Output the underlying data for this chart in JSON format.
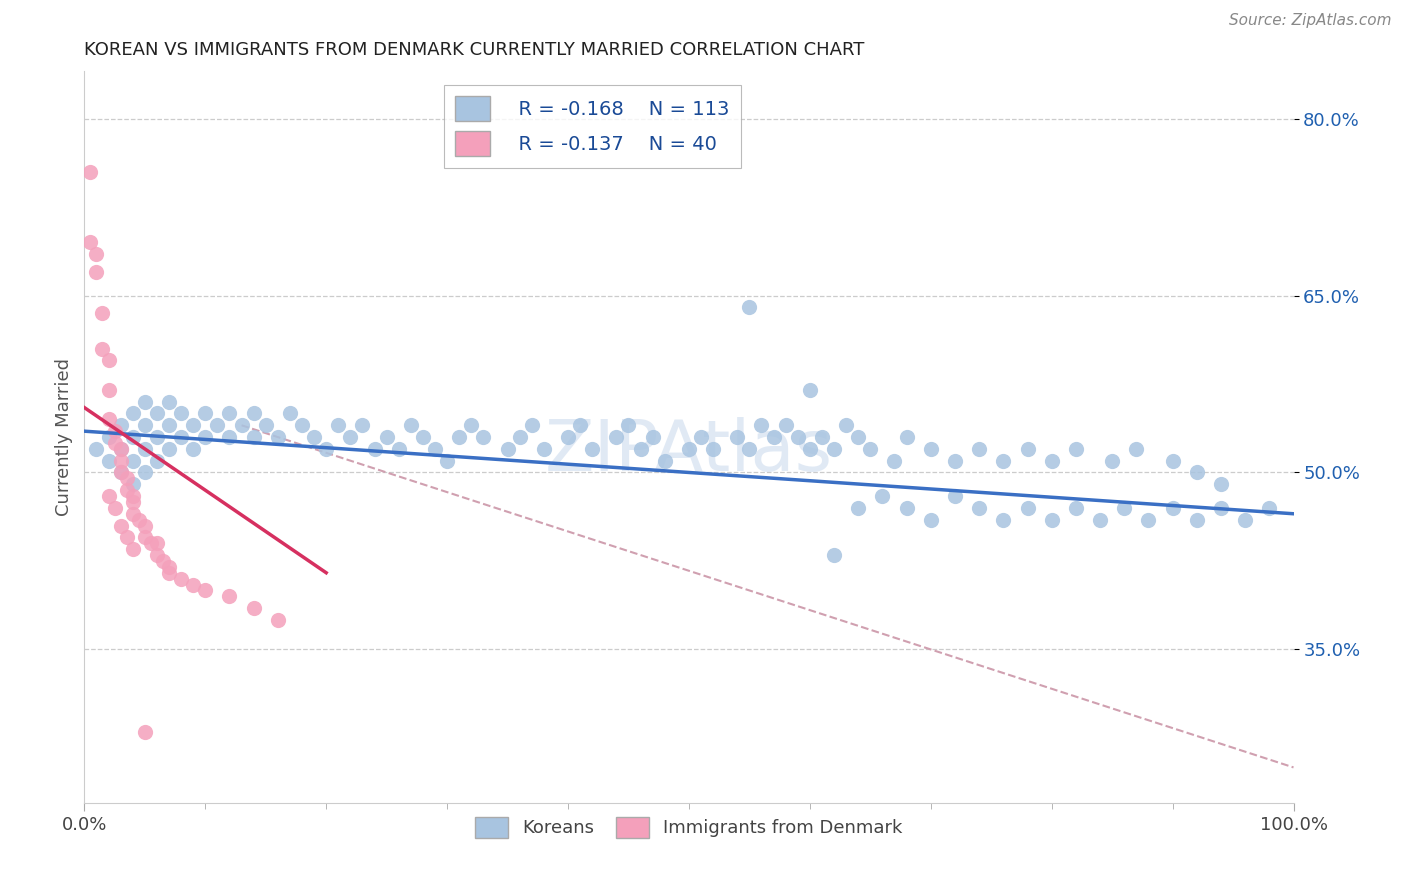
{
  "title": "KOREAN VS IMMIGRANTS FROM DENMARK CURRENTLY MARRIED CORRELATION CHART",
  "source": "Source: ZipAtlas.com",
  "ylabel": "Currently Married",
  "xlim": [
    0.0,
    1.0
  ],
  "ylim": [
    0.22,
    0.84
  ],
  "yticks": [
    0.35,
    0.5,
    0.65,
    0.8
  ],
  "ytick_labels": [
    "35.0%",
    "50.0%",
    "65.0%",
    "80.0%"
  ],
  "xtick_labels": [
    "0.0%",
    "100.0%"
  ],
  "legend_r1": "R = -0.168",
  "legend_n1": "N = 113",
  "legend_r2": "R = -0.137",
  "legend_n2": "N = 40",
  "blue_color": "#a8c4e0",
  "pink_color": "#f4a0bb",
  "trendline_blue": "#3a6fc4",
  "trendline_pink": "#d63060",
  "trendline_gray_color": "#d0a0b0",
  "watermark": "ZIPAtlas",
  "background_color": "#ffffff",
  "blue_scatter_x": [
    0.01,
    0.02,
    0.02,
    0.03,
    0.03,
    0.03,
    0.04,
    0.04,
    0.04,
    0.04,
    0.05,
    0.05,
    0.05,
    0.05,
    0.06,
    0.06,
    0.06,
    0.07,
    0.07,
    0.07,
    0.08,
    0.08,
    0.09,
    0.09,
    0.1,
    0.1,
    0.11,
    0.12,
    0.12,
    0.13,
    0.14,
    0.14,
    0.15,
    0.16,
    0.17,
    0.18,
    0.19,
    0.2,
    0.21,
    0.22,
    0.23,
    0.24,
    0.25,
    0.26,
    0.27,
    0.28,
    0.29,
    0.3,
    0.31,
    0.32,
    0.33,
    0.35,
    0.36,
    0.37,
    0.38,
    0.4,
    0.41,
    0.42,
    0.44,
    0.45,
    0.46,
    0.47,
    0.48,
    0.5,
    0.51,
    0.52,
    0.54,
    0.55,
    0.56,
    0.57,
    0.58,
    0.59,
    0.6,
    0.61,
    0.62,
    0.63,
    0.64,
    0.65,
    0.67,
    0.68,
    0.7,
    0.72,
    0.74,
    0.76,
    0.78,
    0.8,
    0.82,
    0.85,
    0.87,
    0.9,
    0.92,
    0.94,
    0.55,
    0.6,
    0.62,
    0.64,
    0.66,
    0.68,
    0.7,
    0.72,
    0.74,
    0.76,
    0.78,
    0.8,
    0.82,
    0.84,
    0.86,
    0.88,
    0.9,
    0.92,
    0.94,
    0.96,
    0.98
  ],
  "blue_scatter_y": [
    0.52,
    0.53,
    0.51,
    0.54,
    0.52,
    0.5,
    0.55,
    0.53,
    0.51,
    0.49,
    0.54,
    0.52,
    0.5,
    0.56,
    0.55,
    0.53,
    0.51,
    0.54,
    0.52,
    0.56,
    0.55,
    0.53,
    0.54,
    0.52,
    0.55,
    0.53,
    0.54,
    0.55,
    0.53,
    0.54,
    0.55,
    0.53,
    0.54,
    0.53,
    0.55,
    0.54,
    0.53,
    0.52,
    0.54,
    0.53,
    0.54,
    0.52,
    0.53,
    0.52,
    0.54,
    0.53,
    0.52,
    0.51,
    0.53,
    0.54,
    0.53,
    0.52,
    0.53,
    0.54,
    0.52,
    0.53,
    0.54,
    0.52,
    0.53,
    0.54,
    0.52,
    0.53,
    0.51,
    0.52,
    0.53,
    0.52,
    0.53,
    0.52,
    0.54,
    0.53,
    0.54,
    0.53,
    0.52,
    0.53,
    0.52,
    0.54,
    0.53,
    0.52,
    0.51,
    0.53,
    0.52,
    0.51,
    0.52,
    0.51,
    0.52,
    0.51,
    0.52,
    0.51,
    0.52,
    0.51,
    0.5,
    0.49,
    0.64,
    0.57,
    0.43,
    0.47,
    0.48,
    0.47,
    0.46,
    0.48,
    0.47,
    0.46,
    0.47,
    0.46,
    0.47,
    0.46,
    0.47,
    0.46,
    0.47,
    0.46,
    0.47,
    0.46,
    0.47
  ],
  "pink_scatter_x": [
    0.005,
    0.005,
    0.01,
    0.01,
    0.015,
    0.015,
    0.02,
    0.02,
    0.02,
    0.025,
    0.025,
    0.03,
    0.03,
    0.03,
    0.035,
    0.035,
    0.04,
    0.04,
    0.04,
    0.045,
    0.05,
    0.05,
    0.055,
    0.06,
    0.06,
    0.065,
    0.07,
    0.07,
    0.08,
    0.09,
    0.1,
    0.12,
    0.14,
    0.16,
    0.02,
    0.025,
    0.03,
    0.035,
    0.04,
    0.05
  ],
  "pink_scatter_y": [
    0.755,
    0.695,
    0.685,
    0.67,
    0.635,
    0.605,
    0.595,
    0.57,
    0.545,
    0.535,
    0.525,
    0.52,
    0.51,
    0.5,
    0.495,
    0.485,
    0.48,
    0.475,
    0.465,
    0.46,
    0.455,
    0.445,
    0.44,
    0.44,
    0.43,
    0.425,
    0.42,
    0.415,
    0.41,
    0.405,
    0.4,
    0.395,
    0.385,
    0.375,
    0.48,
    0.47,
    0.455,
    0.445,
    0.435,
    0.28
  ],
  "blue_trend_x": [
    0.0,
    1.0
  ],
  "blue_trend_y": [
    0.535,
    0.465
  ],
  "pink_trend_x": [
    0.0,
    0.2
  ],
  "pink_trend_y": [
    0.555,
    0.415
  ],
  "gray_trend_x": [
    0.13,
    1.0
  ],
  "gray_trend_y": [
    0.54,
    0.25
  ]
}
